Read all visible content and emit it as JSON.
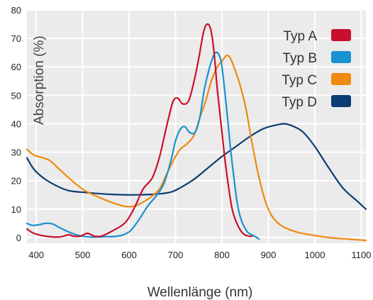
{
  "chart_data": {
    "type": "line",
    "xlabel": "Wellenlänge (nm)",
    "ylabel": "Absorption (%)",
    "xlim": [
      380,
      1110
    ],
    "ylim": [
      -2,
      80
    ],
    "xticks": [
      400,
      500,
      600,
      700,
      800,
      900,
      1000,
      1100
    ],
    "yticks": [
      0,
      10,
      20,
      30,
      40,
      50,
      60,
      70,
      80
    ],
    "grid": true,
    "legend_position": "top-right",
    "series": [
      {
        "name": "Typ A",
        "color": "#c8102e",
        "points": [
          [
            380,
            3
          ],
          [
            395,
            1.5
          ],
          [
            420,
            0.5
          ],
          [
            450,
            0.2
          ],
          [
            470,
            1
          ],
          [
            480,
            0.5
          ],
          [
            495,
            0.5
          ],
          [
            510,
            1.5
          ],
          [
            525,
            0.5
          ],
          [
            540,
            0.5
          ],
          [
            560,
            2
          ],
          [
            590,
            5
          ],
          [
            610,
            10
          ],
          [
            630,
            17
          ],
          [
            650,
            21
          ],
          [
            665,
            28
          ],
          [
            675,
            35
          ],
          [
            685,
            42
          ],
          [
            695,
            48
          ],
          [
            705,
            49
          ],
          [
            715,
            47
          ],
          [
            728,
            48
          ],
          [
            740,
            55
          ],
          [
            750,
            63
          ],
          [
            760,
            72
          ],
          [
            768,
            75
          ],
          [
            776,
            73
          ],
          [
            783,
            65
          ],
          [
            790,
            52
          ],
          [
            798,
            40
          ],
          [
            806,
            28
          ],
          [
            814,
            18
          ],
          [
            822,
            10
          ],
          [
            832,
            5
          ],
          [
            845,
            1.5
          ],
          [
            858,
            0.5
          ],
          [
            865,
            0.5
          ]
        ]
      },
      {
        "name": "Typ B",
        "color": "#1a91d1",
        "points": [
          [
            380,
            5
          ],
          [
            392,
            4.3
          ],
          [
            405,
            4.5
          ],
          [
            420,
            5
          ],
          [
            435,
            4.8
          ],
          [
            450,
            3.5
          ],
          [
            470,
            2
          ],
          [
            490,
            0.8
          ],
          [
            515,
            0.2
          ],
          [
            545,
            0.3
          ],
          [
            575,
            0.5
          ],
          [
            600,
            2
          ],
          [
            620,
            6
          ],
          [
            640,
            11
          ],
          [
            660,
            15
          ],
          [
            675,
            19
          ],
          [
            690,
            27
          ],
          [
            700,
            34
          ],
          [
            710,
            38
          ],
          [
            720,
            39
          ],
          [
            730,
            37
          ],
          [
            742,
            37
          ],
          [
            752,
            42
          ],
          [
            762,
            52
          ],
          [
            772,
            59
          ],
          [
            782,
            64
          ],
          [
            790,
            65
          ],
          [
            798,
            62
          ],
          [
            805,
            53
          ],
          [
            812,
            42
          ],
          [
            818,
            32
          ],
          [
            825,
            22
          ],
          [
            833,
            12
          ],
          [
            842,
            6
          ],
          [
            855,
            2
          ],
          [
            870,
            0.5
          ],
          [
            880,
            -0.5
          ]
        ]
      },
      {
        "name": "Typ C",
        "color": "#f0890f",
        "points": [
          [
            380,
            31
          ],
          [
            395,
            29
          ],
          [
            415,
            28
          ],
          [
            430,
            27
          ],
          [
            450,
            24
          ],
          [
            470,
            21
          ],
          [
            500,
            17
          ],
          [
            530,
            14.5
          ],
          [
            560,
            12.5
          ],
          [
            590,
            11
          ],
          [
            610,
            11
          ],
          [
            625,
            12
          ],
          [
            645,
            14
          ],
          [
            665,
            17
          ],
          [
            680,
            22
          ],
          [
            695,
            27
          ],
          [
            710,
            31
          ],
          [
            725,
            33
          ],
          [
            740,
            36
          ],
          [
            752,
            42
          ],
          [
            765,
            48
          ],
          [
            777,
            55
          ],
          [
            790,
            60
          ],
          [
            800,
            62
          ],
          [
            810,
            64
          ],
          [
            818,
            63
          ],
          [
            828,
            59
          ],
          [
            840,
            53
          ],
          [
            852,
            45
          ],
          [
            865,
            33
          ],
          [
            880,
            21
          ],
          [
            895,
            12
          ],
          [
            910,
            7
          ],
          [
            930,
            4
          ],
          [
            960,
            2
          ],
          [
            990,
            1
          ],
          [
            1030,
            0
          ],
          [
            1070,
            -0.5
          ],
          [
            1110,
            -1
          ]
        ]
      },
      {
        "name": "Typ D",
        "color": "#0a3d73",
        "points": [
          [
            380,
            28
          ],
          [
            395,
            24
          ],
          [
            415,
            21
          ],
          [
            440,
            18.5
          ],
          [
            470,
            16.5
          ],
          [
            510,
            15.8
          ],
          [
            560,
            15.2
          ],
          [
            610,
            15
          ],
          [
            660,
            15.3
          ],
          [
            690,
            16
          ],
          [
            710,
            17.5
          ],
          [
            740,
            20.5
          ],
          [
            770,
            24.5
          ],
          [
            800,
            28.5
          ],
          [
            830,
            32
          ],
          [
            860,
            35.5
          ],
          [
            890,
            38.3
          ],
          [
            915,
            39.5
          ],
          [
            935,
            40
          ],
          [
            955,
            39
          ],
          [
            975,
            37
          ],
          [
            1000,
            32
          ],
          [
            1030,
            24.5
          ],
          [
            1060,
            17.5
          ],
          [
            1090,
            13
          ],
          [
            1110,
            10
          ]
        ]
      }
    ]
  }
}
